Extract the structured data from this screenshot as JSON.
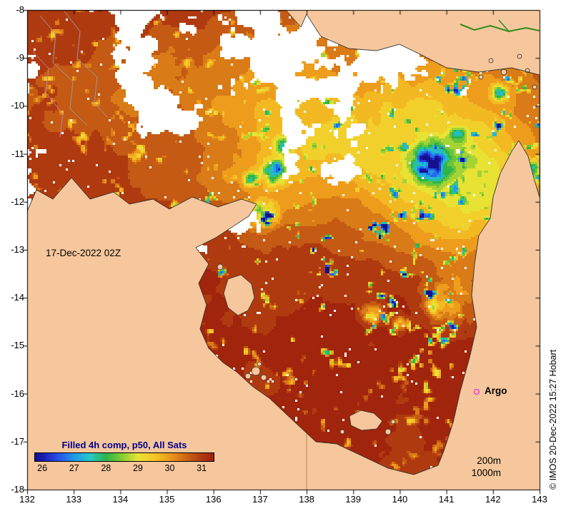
{
  "figure": {
    "background": "#FFFFFF"
  },
  "map": {
    "date_label": "17-Dec-2022 02Z",
    "argo_label": "Argo",
    "depth_labels": [
      "200m",
      "1000m"
    ],
    "copyright": "© IMOS 20-Dec-2022 15:27 Hobart",
    "land_color": "#F6C79C",
    "ocean_nodata_color": "#FFFFFF",
    "argo_marker_color": "#FF00FF",
    "coastline_color": "#2A2A2A"
  },
  "axes": {
    "x_ticks": [
      "132",
      "133",
      "134",
      "135",
      "136",
      "137",
      "138",
      "139",
      "140",
      "141",
      "142",
      "143"
    ],
    "y_ticks": [
      "-8",
      "-9",
      "-10",
      "-11",
      "-12",
      "-13",
      "-14",
      "-15",
      "-16",
      "-17",
      "-18"
    ]
  },
  "colorbar": {
    "title": "Filled 4h comp, p50, All Sats",
    "title_color": "#00008B",
    "tick_labels": [
      "26",
      "27",
      "28",
      "29",
      "30",
      "31"
    ],
    "stops": [
      [
        25.75,
        "#12128C"
      ],
      [
        26,
        "#1A1AB4"
      ],
      [
        26.5,
        "#2A52E8"
      ],
      [
        27,
        "#1E9AE8"
      ],
      [
        27.5,
        "#26C8C8"
      ],
      [
        28,
        "#2EB44A"
      ],
      [
        28.5,
        "#84CC33"
      ],
      [
        29,
        "#E8E235"
      ],
      [
        29.5,
        "#F6C726"
      ],
      [
        30,
        "#EE9C1C"
      ],
      [
        30.5,
        "#CE6A14"
      ],
      [
        31,
        "#B03A10"
      ],
      [
        31.4,
        "#9E200C"
      ]
    ]
  },
  "chart_data": {
    "type": "heatmap",
    "title": "Filled 4h comp, p50, All Sats",
    "x_label": "",
    "y_label": "",
    "x_range": [
      132,
      143
    ],
    "y_range": [
      -18,
      -8
    ],
    "x_ticks": [
      132,
      133,
      134,
      135,
      136,
      137,
      138,
      139,
      140,
      141,
      142,
      143
    ],
    "y_ticks": [
      -8,
      -9,
      -10,
      -11,
      -12,
      -13,
      -14,
      -15,
      -16,
      -17,
      -18
    ],
    "colorbar_ticks": [
      26,
      27,
      28,
      29,
      30,
      31
    ],
    "legend_position": "bottom-left",
    "grid": false,
    "annotations": [
      "17-Dec-2022 02Z",
      "Argo",
      "200m",
      "1000m",
      "© IMOS 20-Dec-2022 15:27 Hobart"
    ]
  }
}
